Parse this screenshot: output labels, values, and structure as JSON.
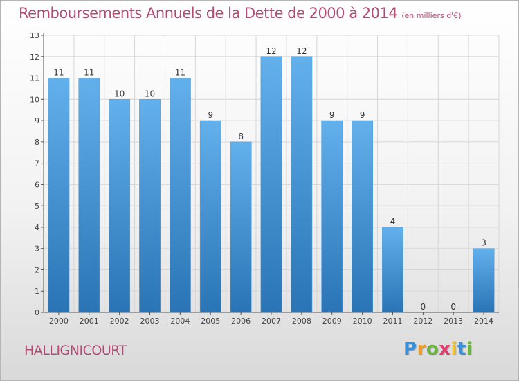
{
  "title": "Remboursements Annuels de la Dette de 2000 à 2014",
  "subtitle": "(en milliers d'€)",
  "commune": "HALLIGNICOURT",
  "logo": {
    "letters": [
      "P",
      "r",
      "o",
      "x",
      "i",
      "t",
      "i"
    ],
    "colors": [
      "#3a8fd6",
      "#f29a1f",
      "#6cb33f",
      "#e23c6b",
      "#f2c12e",
      "#3a8fd6",
      "#6cb33f"
    ]
  },
  "colors": {
    "bar_light": "#62b0ec",
    "bar_dark": "#2a74b5",
    "title": "#b14a74",
    "axis": "#555555",
    "grid": "#d6d6d6"
  },
  "chart_data": {
    "type": "bar",
    "categories": [
      "2000",
      "2001",
      "2002",
      "2003",
      "2004",
      "2005",
      "2006",
      "2007",
      "2008",
      "2009",
      "2010",
      "2011",
      "2012",
      "2013",
      "2014"
    ],
    "values": [
      11,
      11,
      10,
      10,
      11,
      9,
      8,
      12,
      12,
      9,
      9,
      4,
      0,
      0,
      3
    ],
    "value_labels": [
      "11",
      "11",
      "10",
      "10",
      "11",
      "9",
      "8",
      "12",
      "12",
      "9",
      "9",
      "4",
      "0",
      "0",
      "3"
    ],
    "yticks": [
      "0",
      "1",
      "2",
      "3",
      "4",
      "5",
      "6",
      "7",
      "8",
      "9",
      "10",
      "11",
      "12",
      "13"
    ],
    "ylim": [
      0,
      13
    ],
    "title": "Remboursements Annuels de la Dette de 2000 à 2014",
    "xlabel": "",
    "ylabel": "",
    "grid": true
  }
}
